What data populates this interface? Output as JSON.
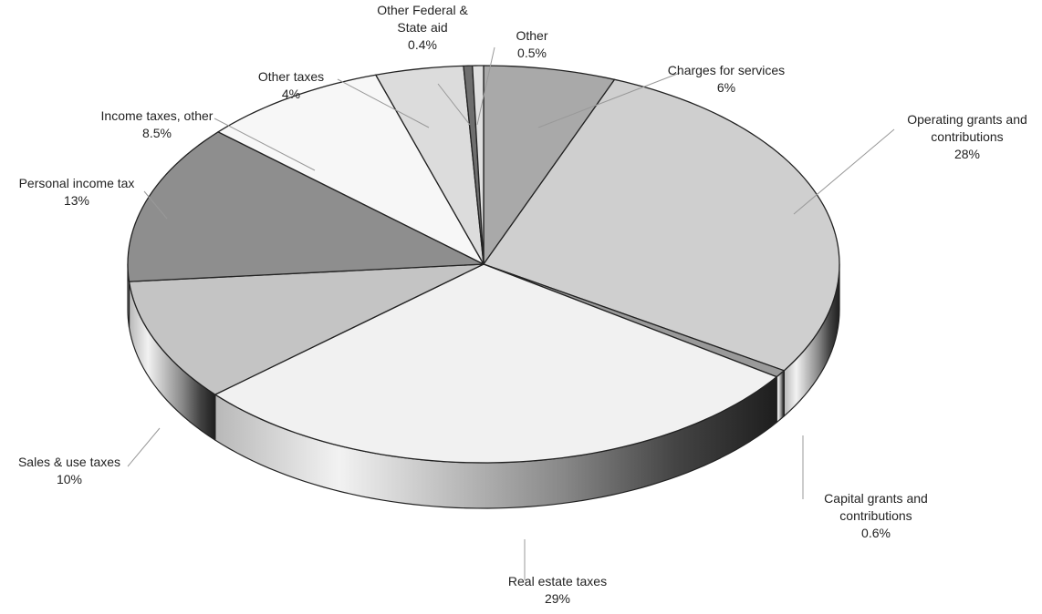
{
  "chart_data": {
    "type": "pie",
    "style": "3d-exploded-edge",
    "unit": "%",
    "slices": [
      {
        "label_lines": [
          "Charges for services"
        ],
        "value_label": "6%",
        "value": 6,
        "color": "#a9a9a9"
      },
      {
        "label_lines": [
          "Operating grants and",
          "contributions"
        ],
        "value_label": "28%",
        "value": 28,
        "color": "#cfcfcf"
      },
      {
        "label_lines": [
          "Capital grants and",
          "contributions"
        ],
        "value_label": "0.6%",
        "value": 0.6,
        "color": "#9a9a9a"
      },
      {
        "label_lines": [
          "Real estate taxes"
        ],
        "value_label": "29%",
        "value": 29,
        "color": "#f1f1f1"
      },
      {
        "label_lines": [
          "Sales & use taxes"
        ],
        "value_label": "10%",
        "value": 10,
        "color": "#c4c4c4"
      },
      {
        "label_lines": [
          "Personal income tax"
        ],
        "value_label": "13%",
        "value": 13,
        "color": "#8e8e8e"
      },
      {
        "label_lines": [
          "Income taxes, other"
        ],
        "value_label": "8.5%",
        "value": 8.5,
        "color": "#f7f7f7"
      },
      {
        "label_lines": [
          "Other taxes"
        ],
        "value_label": "4%",
        "value": 4,
        "color": "#dcdcdc"
      },
      {
        "label_lines": [
          "Other Federal &",
          "State aid"
        ],
        "value_label": "0.4%",
        "value": 0.4,
        "color": "#6e6e6e"
      },
      {
        "label_lines": [
          "Other"
        ],
        "value_label": "0.5%",
        "value": 0.5,
        "color": "#e0e0e0"
      }
    ]
  }
}
